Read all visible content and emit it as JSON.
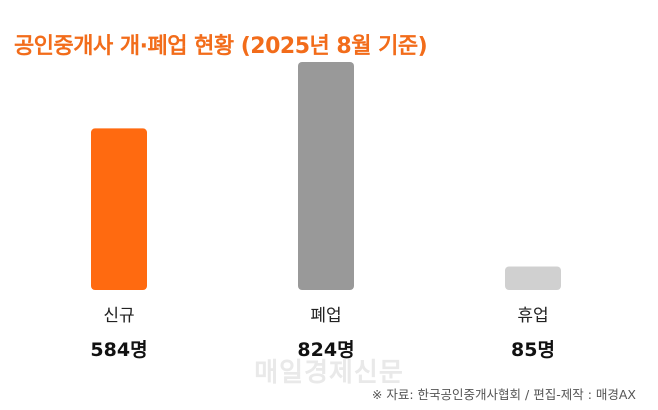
{
  "title": "공인중개사 개·폐업 현황 (2025년 8월 기준)",
  "watermark": "매일경제신문",
  "source": "※ 자료: 한국공인중개사협회 / 편집-제작 : 매경AX",
  "chart_data": {
    "type": "bar",
    "title": "공인중개사 개·폐업 현황 (2025년 8월 기준)",
    "categories": [
      "신규",
      "폐업",
      "휴업"
    ],
    "values": [
      584,
      824,
      85
    ],
    "value_labels": [
      "584명",
      "824명",
      "85명"
    ],
    "colors": [
      "#ff6a10",
      "#999999",
      "#d0d0d0"
    ],
    "ylim": [
      0,
      824
    ],
    "grid": false,
    "legend": "none"
  }
}
